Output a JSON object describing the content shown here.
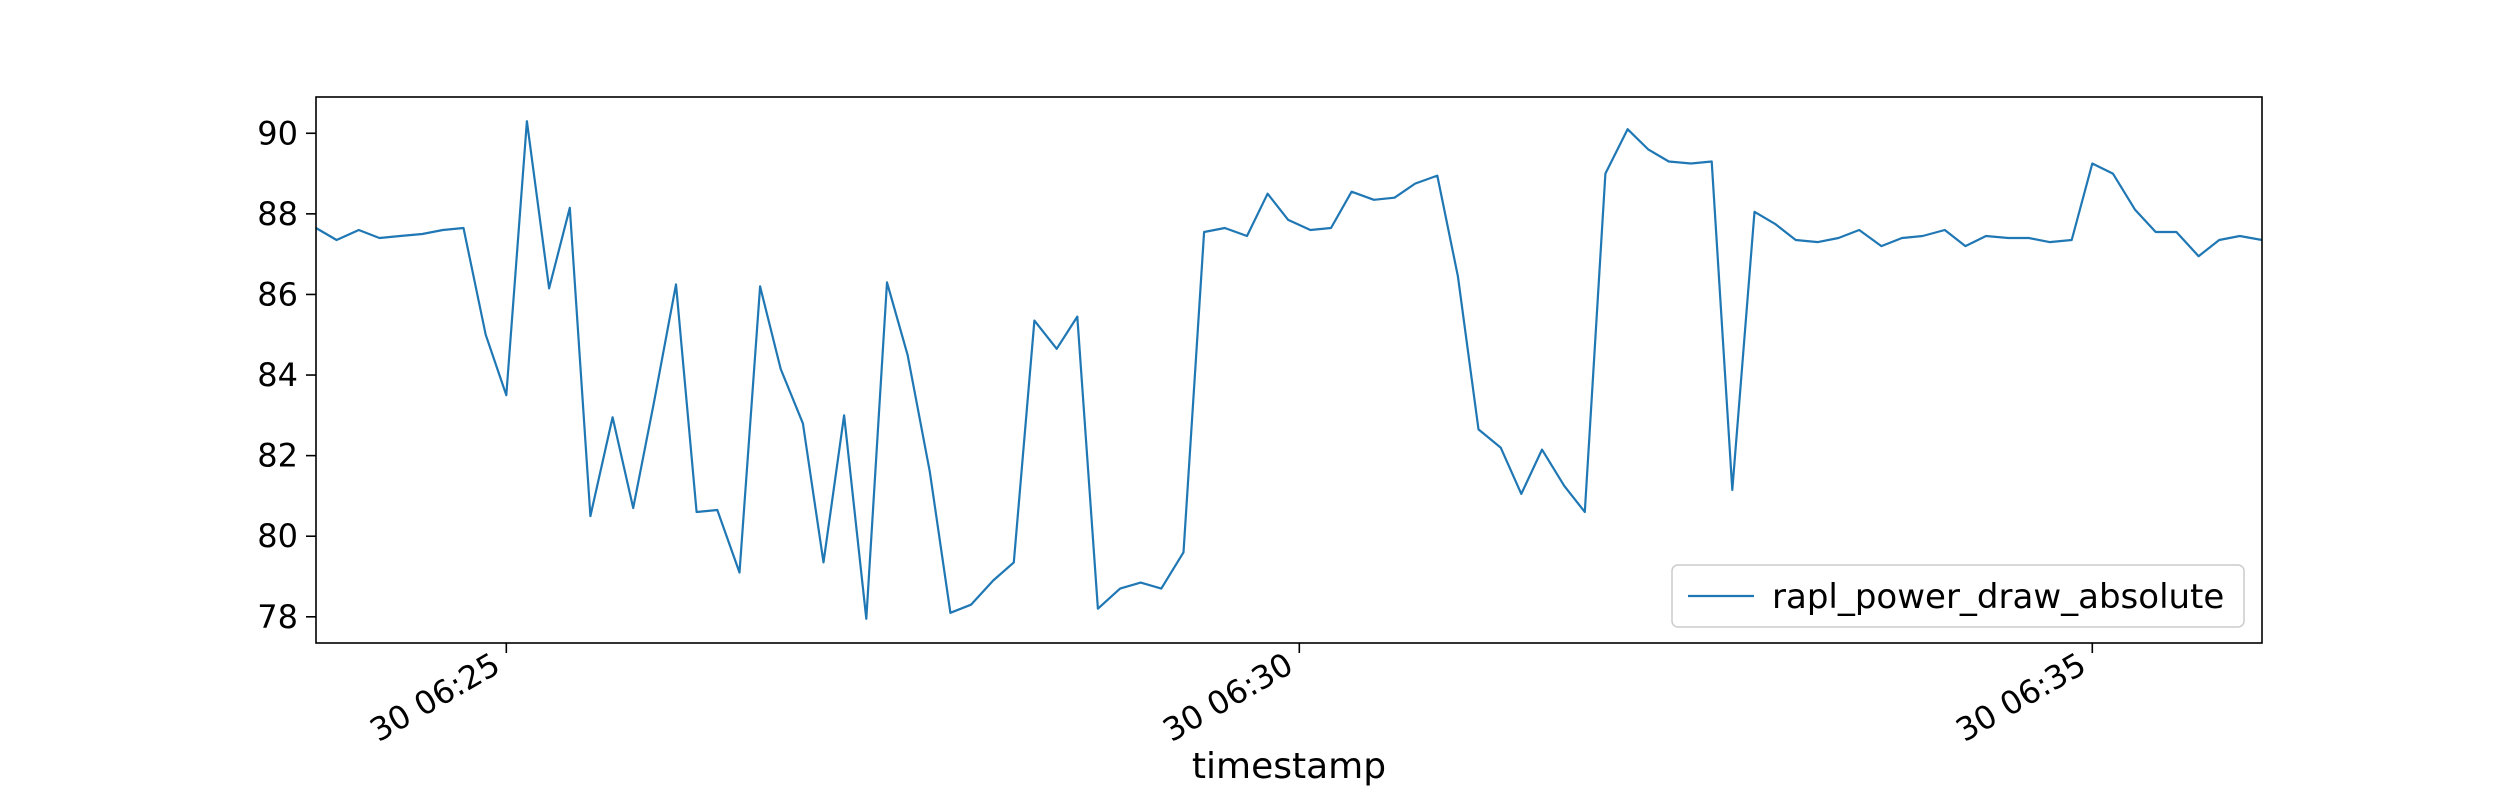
{
  "chart_data": {
    "type": "line",
    "title": "",
    "xlabel": "timestamp",
    "ylabel": "",
    "x_tick_labels": [
      "30 06:25",
      "30 06:30",
      "30 06:35"
    ],
    "x_tick_values": [
      1.2,
      6.2,
      11.2
    ],
    "xlim": [
      0.0,
      12.27
    ],
    "ylim": [
      77.35,
      90.9
    ],
    "y_ticks": [
      78,
      80,
      82,
      84,
      86,
      88,
      90
    ],
    "grid": false,
    "legend_position": "lower-right",
    "colors": {
      "series": "#1f77b4"
    },
    "series": [
      {
        "name": "rapl_power_draw_absolute",
        "x": [
          0.0,
          0.13,
          0.27,
          0.4,
          0.53,
          0.67,
          0.8,
          0.93,
          1.07,
          1.2,
          1.33,
          1.47,
          1.6,
          1.73,
          1.87,
          2.0,
          2.13,
          2.27,
          2.4,
          2.53,
          2.67,
          2.8,
          2.93,
          3.07,
          3.2,
          3.33,
          3.47,
          3.6,
          3.73,
          3.87,
          4.0,
          4.13,
          4.27,
          4.4,
          4.53,
          4.67,
          4.8,
          4.93,
          5.07,
          5.2,
          5.33,
          5.47,
          5.6,
          5.73,
          5.87,
          6.0,
          6.13,
          6.27,
          6.4,
          6.53,
          6.67,
          6.8,
          6.93,
          7.07,
          7.2,
          7.33,
          7.47,
          7.6,
          7.73,
          7.87,
          8.0,
          8.13,
          8.27,
          8.4,
          8.53,
          8.67,
          8.8,
          8.93,
          9.07,
          9.2,
          9.33,
          9.47,
          9.6,
          9.73,
          9.87,
          10.0,
          10.13,
          10.27,
          10.4,
          10.53,
          10.67,
          10.8,
          10.93,
          11.07,
          11.2,
          11.33,
          11.47,
          11.6,
          11.73,
          11.87,
          12.0,
          12.13,
          12.27
        ],
        "y": [
          87.65,
          87.35,
          87.6,
          87.4,
          87.45,
          87.5,
          87.6,
          87.65,
          85.0,
          83.5,
          90.3,
          86.15,
          88.15,
          80.5,
          82.95,
          80.7,
          83.3,
          86.25,
          80.6,
          80.65,
          79.1,
          86.2,
          84.15,
          82.8,
          79.35,
          83.0,
          77.95,
          86.3,
          84.5,
          81.6,
          78.1,
          78.3,
          78.9,
          79.35,
          85.35,
          84.65,
          85.45,
          78.2,
          78.7,
          78.85,
          78.7,
          79.6,
          87.55,
          87.65,
          87.45,
          88.5,
          87.85,
          87.6,
          87.65,
          88.55,
          88.35,
          88.4,
          88.75,
          88.95,
          86.45,
          82.65,
          82.2,
          81.05,
          82.15,
          81.25,
          80.6,
          89.0,
          90.1,
          89.6,
          89.3,
          89.25,
          89.3,
          81.15,
          88.05,
          87.75,
          87.35,
          87.3,
          87.4,
          87.6,
          87.2,
          87.4,
          87.45,
          87.6,
          87.2,
          87.45,
          87.4,
          87.4,
          87.3,
          87.35,
          89.25,
          89.0,
          88.1,
          87.55,
          87.55,
          86.95,
          87.35,
          87.45,
          87.35
        ]
      }
    ]
  }
}
